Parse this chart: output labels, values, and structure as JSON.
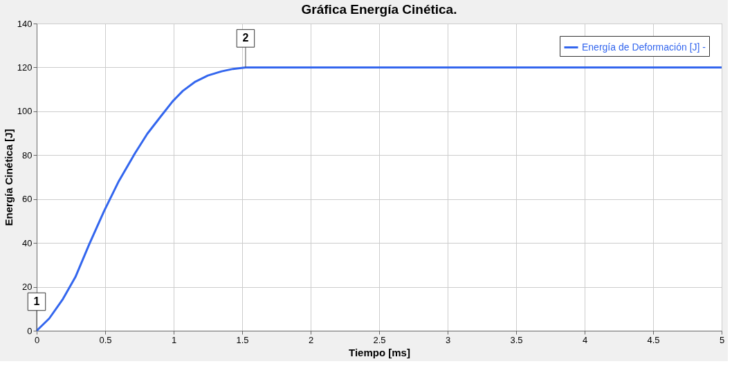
{
  "chart_data": {
    "type": "line",
    "title": "Gráfica Energía Cinética.",
    "xlabel": "Tiempo [ms]",
    "ylabel": "Energía Cinética [J]",
    "x": [
      0,
      0.092,
      0.192,
      0.283,
      0.383,
      0.492,
      0.6,
      0.717,
      0.808,
      0.9,
      0.992,
      1.067,
      1.158,
      1.25,
      1.35,
      1.433,
      1.525,
      5
    ],
    "series": [
      {
        "name": "Energía de Deformación [J] -",
        "color": "#3366ee",
        "values": [
          0,
          5.6,
          14.5,
          24.5,
          39.3,
          54.5,
          68.2,
          80.8,
          89.8,
          97.2,
          104.5,
          109.3,
          113.5,
          116.3,
          118.2,
          119.3,
          120,
          120
        ]
      }
    ],
    "xlim": [
      0,
      5
    ],
    "xticks": [
      0,
      0.5,
      1,
      1.5,
      2,
      2.5,
      3,
      3.5,
      4,
      4.5,
      5
    ],
    "ylim": [
      0,
      140
    ],
    "yticks": [
      0,
      20,
      40,
      60,
      80,
      100,
      120,
      140
    ],
    "annotations": [
      {
        "text": "1",
        "x": 0,
        "y": 0
      },
      {
        "text": "2",
        "x": 1.525,
        "y": 120
      }
    ],
    "grid": true,
    "legend": "top right",
    "marker": "none",
    "line_style": "solid"
  }
}
